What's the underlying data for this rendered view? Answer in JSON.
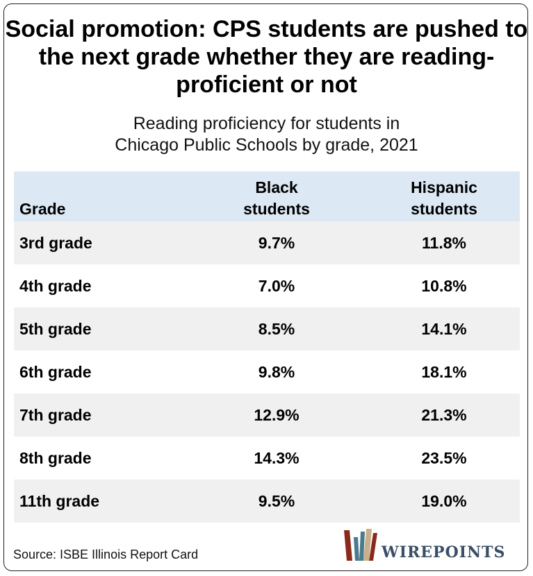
{
  "chart_data": {
    "type": "table",
    "title": "Social promotion: CPS students are pushed to the next grade whether they are reading-proficient or not",
    "subtitle_lines": [
      "Reading proficiency for students in",
      "Chicago Public Schools by grade, 2021"
    ],
    "columns": {
      "grade": "Grade",
      "black_lines": [
        "Black",
        "students"
      ],
      "hispanic_lines": [
        "Hispanic",
        "students"
      ]
    },
    "rows": [
      {
        "grade": "3rd grade",
        "black": "9.7%",
        "hispanic": "11.8%"
      },
      {
        "grade": "4th grade",
        "black": "7.0%",
        "hispanic": "10.8%"
      },
      {
        "grade": "5th grade",
        "black": "8.5%",
        "hispanic": "14.1%"
      },
      {
        "grade": "6th grade",
        "black": "9.8%",
        "hispanic": "18.1%"
      },
      {
        "grade": "7th grade",
        "black": "12.9%",
        "hispanic": "21.3%"
      },
      {
        "grade": "8th grade",
        "black": "14.3%",
        "hispanic": "23.5%"
      },
      {
        "grade": "11th grade",
        "black": "9.5%",
        "hispanic": "19.0%"
      }
    ],
    "source": "Source: ISBE Illinois Report Card"
  },
  "brand": {
    "logo_text": "WIREPOINTS",
    "header_fill": "#dce9f5",
    "row_shade": "#f0f0f0",
    "logo_text_color": "#3a4e66",
    "logo_mark_colors": [
      "#8b2a1c",
      "#4a7a8c",
      "#c9b08a"
    ]
  }
}
